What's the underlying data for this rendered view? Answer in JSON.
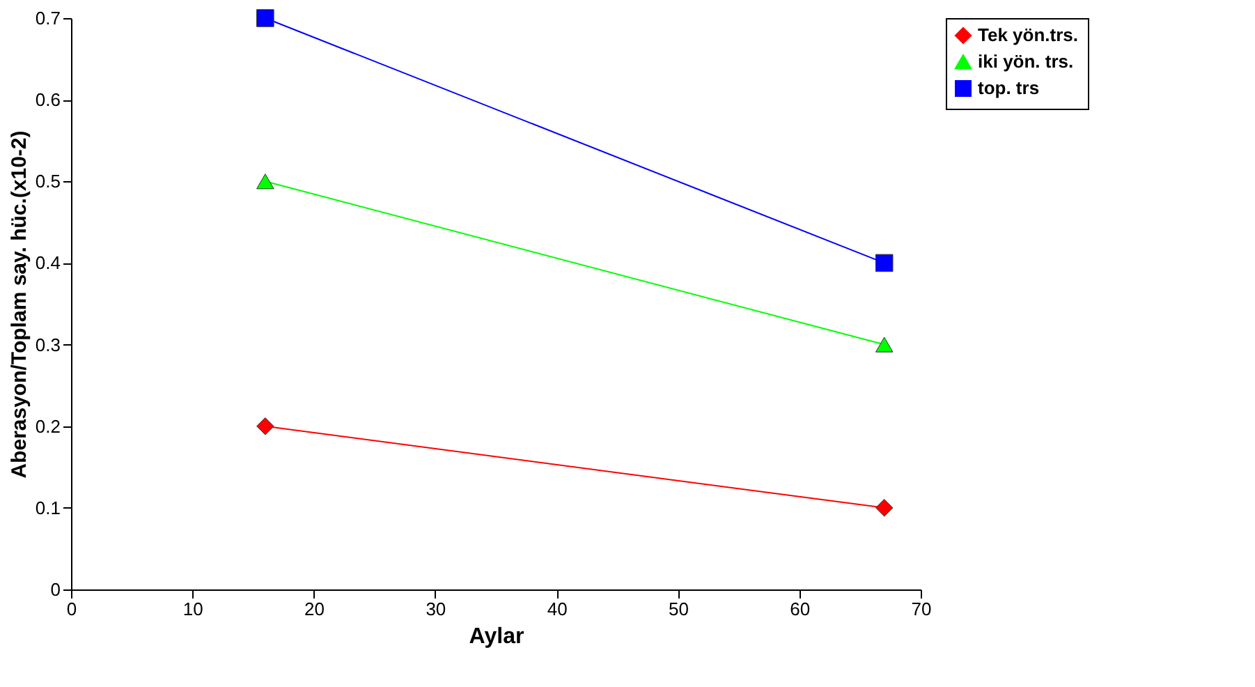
{
  "chart_data": {
    "type": "line",
    "xlabel": "Aylar",
    "ylabel": "Aberasyon/Toplam say. hüc.(x10-2)",
    "x": [
      16,
      67
    ],
    "series": [
      {
        "name": "Tek yön.trs.",
        "color": "#ff0000",
        "marker": "diamond",
        "values": [
          0.2,
          0.1
        ]
      },
      {
        "name": "iki yön. trs.",
        "color": "#00ff00",
        "marker": "triangle",
        "values": [
          0.5,
          0.3
        ]
      },
      {
        "name": "top. trs",
        "color": "#0000ff",
        "marker": "square",
        "values": [
          0.7,
          0.4
        ]
      }
    ],
    "xlim": [
      0,
      70
    ],
    "xticks": [
      0,
      10,
      20,
      30,
      40,
      50,
      60,
      70
    ],
    "ylim": [
      0,
      0.7
    ],
    "yticks": [
      0,
      0.1,
      0.2,
      0.3,
      0.4,
      0.5,
      0.6,
      0.7
    ],
    "grid": false,
    "legend": "top right",
    "line_style": "solid"
  }
}
